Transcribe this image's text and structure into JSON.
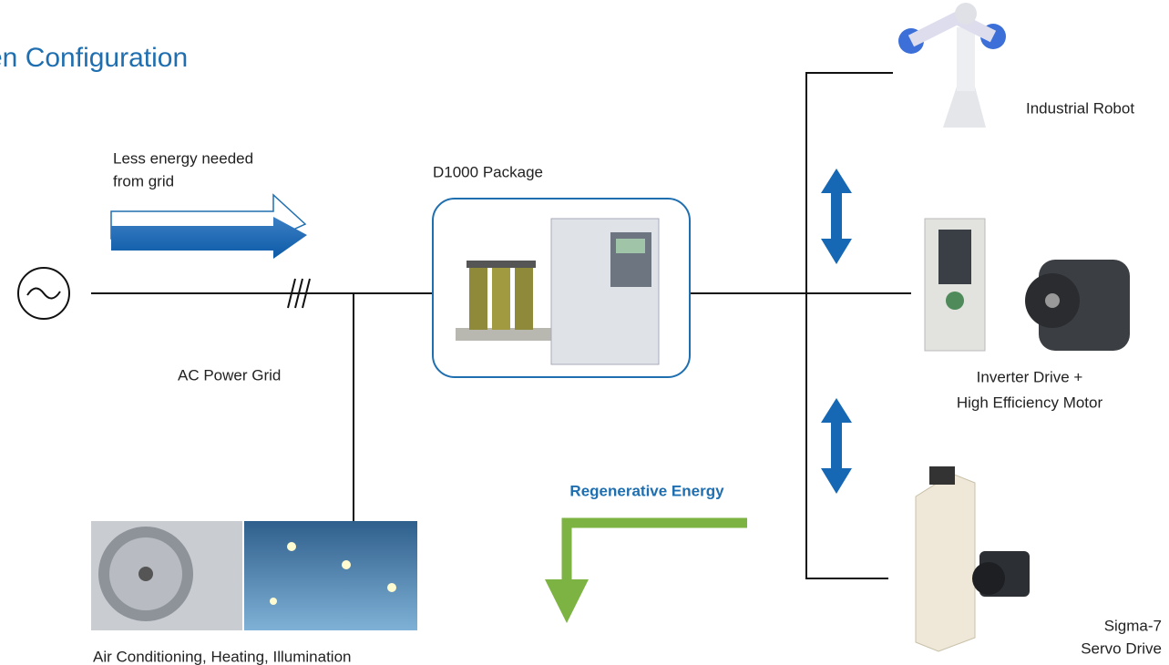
{
  "title": "en Configuration",
  "grid": {
    "arrow_label": [
      "Less energy needed",
      "from grid"
    ],
    "label": "AC Power Grid"
  },
  "package": {
    "label": "D1000 Package"
  },
  "loads": [
    {
      "label": [
        "Industrial Robot"
      ]
    },
    {
      "label": [
        "Inverter Drive +",
        "High Efficiency Motor"
      ]
    },
    {
      "label": [
        "Sigma-7",
        "Servo Drive"
      ]
    }
  ],
  "regenerative": {
    "label": "Regenerative Energy"
  },
  "facility": {
    "label": "Air Conditioning, Heating, Illumination"
  }
}
